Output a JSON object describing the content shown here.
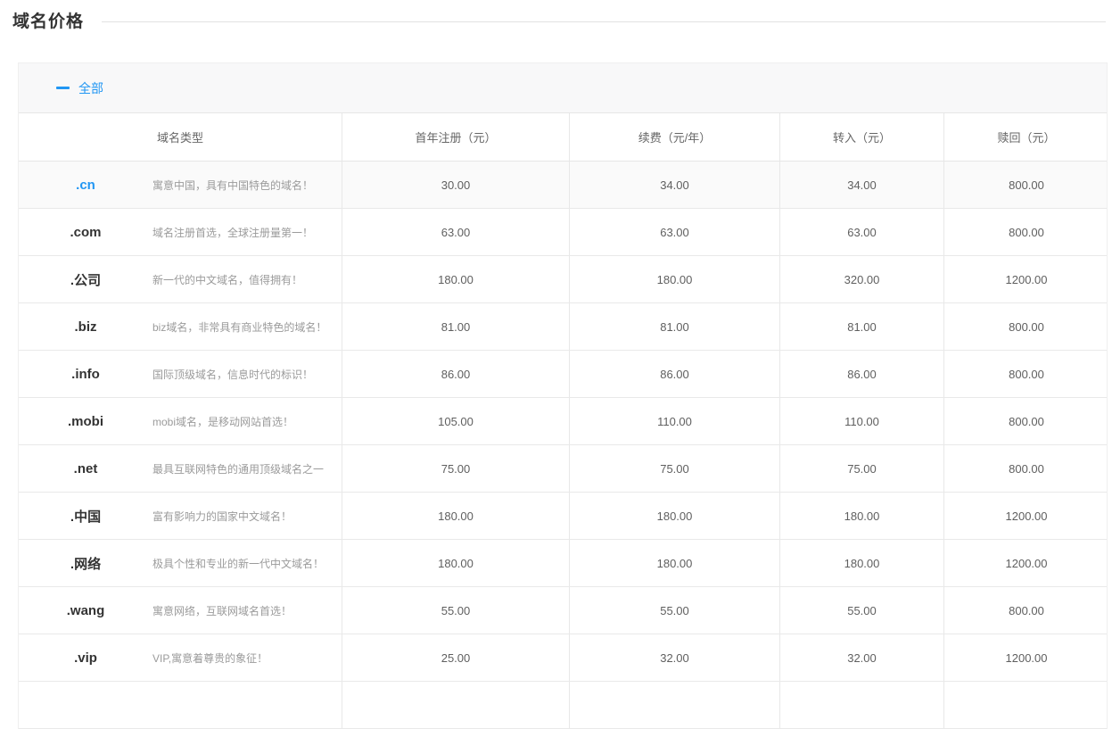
{
  "page": {
    "title": "域名价格"
  },
  "panel": {
    "collapse_label": "全部",
    "collapse_state": "expanded"
  },
  "table": {
    "columns": [
      "域名类型",
      "首年注册（元）",
      "续费（元/年）",
      "转入（元）",
      "赎回（元）"
    ],
    "rows": [
      {
        "tld": ".cn",
        "desc": "寓意中国，具有中国特色的域名！",
        "first_year": "30.00",
        "renew": "34.00",
        "transfer": "34.00",
        "redeem": "800.00",
        "highlighted": true
      },
      {
        "tld": ".com",
        "desc": "域名注册首选，全球注册量第一！",
        "first_year": "63.00",
        "renew": "63.00",
        "transfer": "63.00",
        "redeem": "800.00"
      },
      {
        "tld": ".公司",
        "desc": "新一代的中文域名，值得拥有！",
        "first_year": "180.00",
        "renew": "180.00",
        "transfer": "320.00",
        "redeem": "1200.00"
      },
      {
        "tld": ".biz",
        "desc": "biz域名，非常具有商业特色的域名！",
        "first_year": "81.00",
        "renew": "81.00",
        "transfer": "81.00",
        "redeem": "800.00"
      },
      {
        "tld": ".info",
        "desc": "国际顶级域名，信息时代的标识！",
        "first_year": "86.00",
        "renew": "86.00",
        "transfer": "86.00",
        "redeem": "800.00"
      },
      {
        "tld": ".mobi",
        "desc": "mobi域名，是移动网站首选！",
        "first_year": "105.00",
        "renew": "110.00",
        "transfer": "110.00",
        "redeem": "800.00"
      },
      {
        "tld": ".net",
        "desc": "最具互联网特色的通用顶级域名之一",
        "first_year": "75.00",
        "renew": "75.00",
        "transfer": "75.00",
        "redeem": "800.00"
      },
      {
        "tld": ".中国",
        "desc": "富有影响力的国家中文域名！",
        "first_year": "180.00",
        "renew": "180.00",
        "transfer": "180.00",
        "redeem": "1200.00"
      },
      {
        "tld": ".网络",
        "desc": "极具个性和专业的新一代中文域名！",
        "first_year": "180.00",
        "renew": "180.00",
        "transfer": "180.00",
        "redeem": "1200.00"
      },
      {
        "tld": ".wang",
        "desc": "寓意网络，互联网域名首选！",
        "first_year": "55.00",
        "renew": "55.00",
        "transfer": "55.00",
        "redeem": "800.00"
      },
      {
        "tld": ".vip",
        "desc": "VIP,寓意着尊贵的象征！",
        "first_year": "25.00",
        "renew": "32.00",
        "transfer": "32.00",
        "redeem": "1200.00"
      },
      {
        "tld": "",
        "desc": "",
        "first_year": "",
        "renew": "",
        "transfer": "",
        "redeem": ""
      }
    ]
  },
  "colors": {
    "accent_blue": "#2196f3",
    "highlight_row_bg": "#fafafa",
    "header_bar_bg": "#f8f8f9",
    "border": "#e8e8e8",
    "title_text": "#333333",
    "muted_text": "#9b9b9b"
  }
}
